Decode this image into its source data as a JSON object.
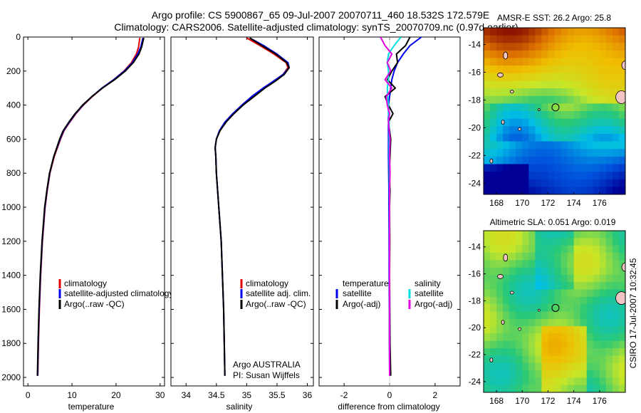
{
  "header": {
    "line1": "Argo profile: CS 5900867_65 09-Jul-2007 20070711_460 18.532S 172.579E",
    "line2": "Climatology: CARS2006. Satellite-adjusted climatology: synTS_20070709.nc (0.97d earlier)"
  },
  "credit": "CSIRO 17-Jul-2007 10:32:45",
  "colors": {
    "climatology": "#e00000",
    "satellite": "#0000ee",
    "argo": "#000000",
    "sat_salinity": "#00e0e0",
    "argo_salinity": "#e000e0"
  },
  "chart_data": [
    {
      "type": "line",
      "id": "temperature",
      "xlabel": "temperature",
      "xlim": [
        -1,
        31
      ],
      "xticks": [
        0,
        10,
        20,
        30
      ],
      "ylim": [
        2050,
        0
      ],
      "yticks": [
        0,
        200,
        400,
        600,
        800,
        1000,
        1200,
        1400,
        1600,
        1800,
        2000
      ],
      "legend": [
        "climatology",
        "satellite-adjusted climatology",
        "Argo(..raw -QC)"
      ],
      "depth": [
        5,
        60,
        100,
        150,
        200,
        250,
        300,
        350,
        400,
        450,
        500,
        550,
        600,
        700,
        800,
        900,
        1000,
        1200,
        1400,
        1600,
        1800,
        1990
      ],
      "series": [
        {
          "name": "climatology",
          "values": [
            25.4,
            25.1,
            24.6,
            23.5,
            21.8,
            19.5,
            16.9,
            14.6,
            12.6,
            10.9,
            9.5,
            8.2,
            7.4,
            6.0,
            5.0,
            4.4,
            3.9,
            3.3,
            2.9,
            2.6,
            2.4,
            2.25
          ]
        },
        {
          "name": "satellite",
          "values": [
            26.1,
            25.6,
            24.9,
            23.7,
            21.9,
            19.5,
            16.8,
            14.5,
            12.5,
            10.8,
            9.4,
            8.1,
            7.3,
            5.9,
            4.95,
            4.35,
            3.85,
            3.25,
            2.85,
            2.55,
            2.35,
            2.2
          ]
        },
        {
          "name": "argo",
          "values": [
            26.3,
            25.8,
            25.2,
            23.9,
            22.1,
            19.7,
            16.9,
            14.5,
            12.4,
            10.7,
            9.3,
            8.0,
            7.2,
            5.9,
            4.9,
            4.3,
            3.8,
            3.2,
            2.8,
            2.5,
            2.3,
            2.15
          ]
        }
      ]
    },
    {
      "type": "line",
      "id": "salinity",
      "xlabel": "salinity",
      "xlim": [
        33.75,
        36.1
      ],
      "xticks": [
        34,
        34.5,
        35,
        35.5,
        36
      ],
      "ylim": [
        2050,
        0
      ],
      "legend": [
        "climatology",
        "satellite adj. clim.",
        "Argo(..raw -QC)"
      ],
      "annotation": [
        "Argo AUSTRALIA",
        "PI: Susan Wijffels"
      ],
      "depth": [
        5,
        50,
        100,
        150,
        180,
        220,
        260,
        300,
        350,
        400,
        450,
        500,
        550,
        600,
        650,
        700,
        800,
        900,
        1000,
        1100,
        1200,
        1400,
        1600,
        1800,
        1990
      ],
      "series": [
        {
          "name": "climatology",
          "values": [
            35.0,
            35.22,
            35.45,
            35.65,
            35.68,
            35.6,
            35.45,
            35.28,
            35.1,
            34.93,
            34.78,
            34.65,
            34.56,
            34.5,
            34.48,
            34.49,
            34.5,
            34.52,
            34.54,
            34.56,
            34.58,
            34.6,
            34.62,
            34.63,
            34.64
          ]
        },
        {
          "name": "satellite",
          "values": [
            35.05,
            35.28,
            35.5,
            35.68,
            35.7,
            35.6,
            35.44,
            35.27,
            35.08,
            34.92,
            34.77,
            34.64,
            34.55,
            34.5,
            34.48,
            34.49,
            34.5,
            34.52,
            34.54,
            34.56,
            34.58,
            34.6,
            34.62,
            34.63,
            34.64
          ]
        },
        {
          "name": "argo",
          "values": [
            35.05,
            35.25,
            35.48,
            35.66,
            35.7,
            35.62,
            35.47,
            35.3,
            35.12,
            34.94,
            34.79,
            34.66,
            34.56,
            34.5,
            34.48,
            34.49,
            34.5,
            34.52,
            34.54,
            34.56,
            34.58,
            34.6,
            34.62,
            34.63,
            34.64
          ]
        }
      ]
    },
    {
      "type": "line",
      "id": "difference",
      "xlabel": "difference from climatology",
      "xlim": [
        -3.1,
        3.1
      ],
      "xticks": [
        -2,
        0,
        2
      ],
      "ylim": [
        2050,
        0
      ],
      "legend_groups": [
        {
          "title": "temperature",
          "items": [
            "satellite",
            "Argo(-adj)"
          ]
        },
        {
          "title": "salinity",
          "items": [
            "satellite",
            "Argo(-adj)"
          ]
        }
      ],
      "depth": [
        0,
        50,
        100,
        150,
        200,
        250,
        300,
        350,
        400,
        450,
        500,
        600,
        700,
        800,
        900,
        1000,
        1200,
        1400,
        1600,
        1800,
        1990
      ],
      "series": [
        {
          "name": "temperature satellite",
          "values": [
            1.4,
            0.9,
            0.6,
            0.35,
            0.2,
            0.1,
            0.05,
            0.0,
            -0.05,
            -0.05,
            -0.05,
            -0.05,
            -0.05,
            -0.04,
            -0.03,
            -0.03,
            -0.02,
            -0.02,
            -0.01,
            -0.01,
            0.0
          ]
        },
        {
          "name": "temperature Argo(-adj)",
          "values": [
            0.9,
            0.7,
            0.3,
            0.35,
            0.1,
            -0.1,
            0.25,
            -0.2,
            -0.05,
            0.15,
            -0.05,
            0.05,
            0.02,
            -0.02,
            0.02,
            0.0,
            0.01,
            0.0,
            0.01,
            0.02,
            0.05
          ]
        },
        {
          "name": "salinity satellite",
          "values": [
            0.5,
            0.2,
            -0.05,
            -0.1,
            -0.05,
            -0.05,
            -0.1,
            -0.08,
            -0.05,
            -0.05,
            -0.02,
            -0.02,
            -0.02,
            -0.01,
            -0.01,
            -0.01,
            0.0,
            0.0,
            0.0,
            0.0,
            0.0
          ]
        },
        {
          "name": "salinity Argo(-adj)",
          "values": [
            -0.4,
            -0.2,
            0.1,
            -0.1,
            0.05,
            -0.2,
            0.1,
            -0.15,
            -0.1,
            0.0,
            -0.05,
            0.02,
            0.0,
            0.02,
            0.0,
            0.0,
            0.0,
            0.0,
            0.0,
            0.0,
            0.0
          ]
        }
      ]
    },
    {
      "type": "heatmap",
      "id": "sst-map",
      "title": "AMSR-E SST: 26.2  Argo: 25.8",
      "xlim": [
        167,
        178
      ],
      "ylim": [
        -24.8,
        -12.8
      ],
      "xticks": [
        168,
        170,
        172,
        174,
        176
      ],
      "yticks": [
        -14,
        -16,
        -18,
        -20,
        -22,
        -24
      ],
      "marker": {
        "lon": 172.579,
        "lat": -18.532
      }
    },
    {
      "type": "heatmap",
      "id": "sla-map",
      "title": "Altimetric SLA: 0.051  Argo: 0.019",
      "xlim": [
        167,
        178
      ],
      "ylim": [
        -24.8,
        -12.8
      ],
      "xticks": [
        168,
        170,
        172,
        174,
        176
      ],
      "yticks": [
        -14,
        -16,
        -18,
        -20,
        -22,
        -24
      ],
      "marker": {
        "lon": 172.579,
        "lat": -18.532
      }
    }
  ]
}
